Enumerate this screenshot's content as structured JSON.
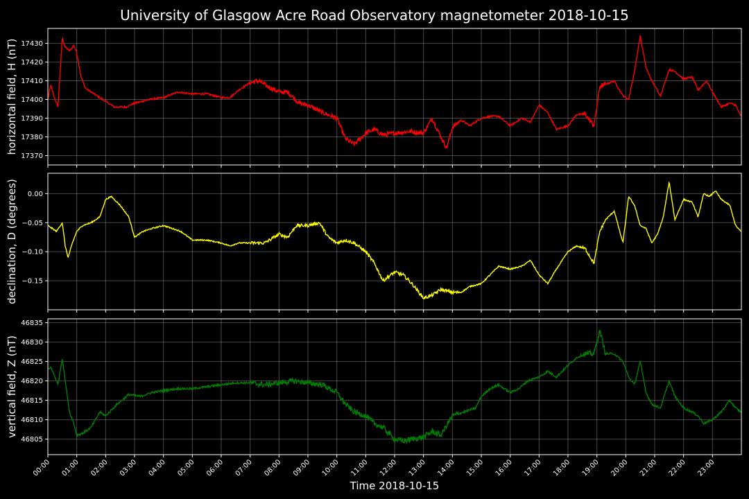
{
  "chart_data": {
    "type": "line",
    "title": "University of Glasgow Acre Road Observatory magnetometer 2018-10-15",
    "xlabel": "Time 2018-10-15",
    "xlim": [
      0,
      24
    ],
    "x_ticks": [
      "00:00",
      "01:00",
      "02:00",
      "03:00",
      "04:00",
      "05:00",
      "06:00",
      "07:00",
      "08:00",
      "09:00",
      "10:00",
      "11:00",
      "12:00",
      "13:00",
      "14:00",
      "15:00",
      "16:00",
      "17:00",
      "18:00",
      "19:00",
      "20:00",
      "21:00",
      "22:00",
      "23:00"
    ],
    "grid": true,
    "panels": [
      {
        "ylabel": "horizontal field, H (nT)",
        "color": "#ff0000",
        "ylim": [
          17365,
          17438
        ],
        "y_ticks": [
          17370,
          17380,
          17390,
          17400,
          17410,
          17420,
          17430
        ],
        "y_tick_labels": [
          "17370",
          "17380",
          "17390",
          "17400",
          "17410",
          "17420",
          "17430"
        ],
        "x_hours": [
          0,
          0.1,
          0.2,
          0.35,
          0.5,
          0.6,
          0.75,
          0.9,
          1.0,
          1.15,
          1.3,
          1.5,
          1.7,
          2.0,
          2.3,
          2.7,
          3.0,
          3.5,
          4.0,
          4.5,
          5.0,
          5.5,
          6.0,
          6.3,
          6.6,
          7.0,
          7.3,
          7.6,
          8.0,
          8.3,
          8.7,
          9.0,
          9.5,
          10.0,
          10.3,
          10.6,
          11.0,
          11.3,
          11.6,
          12.0,
          12.5,
          13.0,
          13.3,
          13.6,
          13.8,
          14.0,
          14.3,
          14.6,
          15.0,
          15.3,
          15.6,
          16.0,
          16.4,
          16.7,
          17.0,
          17.3,
          17.6,
          18.0,
          18.3,
          18.6,
          18.9,
          19.1,
          19.3,
          19.6,
          19.9,
          20.1,
          20.3,
          20.5,
          20.7,
          20.9,
          21.2,
          21.5,
          21.7,
          22.0,
          22.3,
          22.5,
          22.8,
          23.0,
          23.3,
          23.6,
          23.8,
          23.98
        ],
        "values": [
          17400,
          17408,
          17402,
          17396,
          17433,
          17428,
          17426,
          17429,
          17425,
          17412,
          17406,
          17404,
          17402,
          17399,
          17396,
          17396,
          17398,
          17400,
          17401,
          17404,
          17403,
          17403,
          17401,
          17401,
          17405,
          17409,
          17410,
          17407,
          17404,
          17404,
          17398,
          17397,
          17393,
          17390,
          17379,
          17376,
          17382,
          17384,
          17381,
          17382,
          17383,
          17382,
          17390,
          17380,
          17374,
          17385,
          17389,
          17386,
          17390,
          17391,
          17391,
          17386,
          17390,
          17388,
          17397,
          17393,
          17384,
          17386,
          17392,
          17392,
          17386,
          17407,
          17408,
          17410,
          17402,
          17400,
          17415,
          17434,
          17417,
          17410,
          17402,
          17416,
          17415,
          17411,
          17412,
          17405,
          17410,
          17404,
          17396,
          17398,
          17397,
          17391
        ],
        "noise": 1.6
      },
      {
        "ylabel": "declination, D (degrees)",
        "color": "#ffff00",
        "ylim": [
          -0.2,
          0.035
        ],
        "y_ticks": [
          -0.15,
          -0.1,
          -0.05,
          0.0
        ],
        "y_tick_labels": [
          "−0.15",
          "−0.10",
          "−0.05",
          "0.00"
        ],
        "x_hours": [
          0,
          0.3,
          0.5,
          0.6,
          0.7,
          0.85,
          1.0,
          1.2,
          1.5,
          1.8,
          2.0,
          2.2,
          2.5,
          2.8,
          3.0,
          3.3,
          3.6,
          4.0,
          4.3,
          4.6,
          5.0,
          5.5,
          6.0,
          6.3,
          6.6,
          7.0,
          7.5,
          8.0,
          8.3,
          8.6,
          9.0,
          9.4,
          9.7,
          10.0,
          10.3,
          10.6,
          11.0,
          11.3,
          11.6,
          12.0,
          12.3,
          12.6,
          13.0,
          13.3,
          13.6,
          14.0,
          14.3,
          14.6,
          15.0,
          15.3,
          15.6,
          16.0,
          16.4,
          16.7,
          17.0,
          17.3,
          17.6,
          18.0,
          18.3,
          18.6,
          18.9,
          19.1,
          19.3,
          19.6,
          19.9,
          20.1,
          20.3,
          20.5,
          20.7,
          20.9,
          21.1,
          21.3,
          21.5,
          21.7,
          22.0,
          22.3,
          22.5,
          22.7,
          22.9,
          23.1,
          23.3,
          23.6,
          23.8,
          23.98
        ],
        "values": [
          -0.055,
          -0.065,
          -0.05,
          -0.09,
          -0.11,
          -0.085,
          -0.065,
          -0.055,
          -0.05,
          -0.04,
          -0.01,
          -0.005,
          -0.02,
          -0.04,
          -0.075,
          -0.065,
          -0.06,
          -0.055,
          -0.06,
          -0.065,
          -0.08,
          -0.08,
          -0.085,
          -0.09,
          -0.085,
          -0.085,
          -0.085,
          -0.07,
          -0.075,
          -0.055,
          -0.055,
          -0.05,
          -0.075,
          -0.085,
          -0.08,
          -0.085,
          -0.1,
          -0.12,
          -0.15,
          -0.135,
          -0.14,
          -0.155,
          -0.18,
          -0.175,
          -0.165,
          -0.17,
          -0.17,
          -0.16,
          -0.155,
          -0.14,
          -0.125,
          -0.13,
          -0.125,
          -0.115,
          -0.14,
          -0.155,
          -0.13,
          -0.1,
          -0.09,
          -0.095,
          -0.12,
          -0.065,
          -0.045,
          -0.03,
          -0.085,
          -0.005,
          -0.02,
          -0.055,
          -0.06,
          -0.085,
          -0.07,
          -0.04,
          0.02,
          -0.045,
          -0.01,
          -0.015,
          -0.04,
          0.0,
          -0.005,
          0.005,
          -0.01,
          -0.02,
          -0.055,
          -0.065
        ],
        "noise": 0.0035
      },
      {
        "ylabel": "vertical field, Z (nT)",
        "color": "#008000",
        "ylim": [
          46801,
          46836
        ],
        "y_ticks": [
          46805,
          46810,
          46815,
          46820,
          46825,
          46830,
          46835
        ],
        "y_tick_labels": [
          "46805",
          "46810",
          "46815",
          "46820",
          "46825",
          "46830",
          "46835"
        ],
        "x_hours": [
          0,
          0.1,
          0.25,
          0.35,
          0.5,
          0.6,
          0.75,
          0.9,
          1.0,
          1.2,
          1.5,
          1.8,
          2.0,
          2.4,
          2.8,
          3.2,
          3.6,
          4.0,
          4.5,
          5.0,
          5.5,
          6.0,
          6.5,
          7.0,
          7.5,
          8.0,
          8.5,
          9.0,
          9.5,
          10.0,
          10.3,
          10.6,
          11.0,
          11.3,
          11.6,
          12.0,
          12.3,
          12.6,
          13.0,
          13.3,
          13.6,
          14.0,
          14.4,
          14.8,
          15.0,
          15.3,
          15.6,
          16.0,
          16.3,
          16.6,
          17.0,
          17.3,
          17.6,
          18.0,
          18.3,
          18.6,
          18.9,
          19.1,
          19.3,
          19.6,
          19.9,
          20.1,
          20.3,
          20.5,
          20.7,
          20.9,
          21.2,
          21.5,
          21.7,
          22.0,
          22.3,
          22.5,
          22.7,
          23.0,
          23.3,
          23.6,
          23.8,
          23.98
        ],
        "values": [
          46823,
          46823.5,
          46821,
          46819,
          46826,
          46820,
          46812,
          46809,
          46806,
          46806.5,
          46808,
          46812,
          46811,
          46814,
          46816.5,
          46816,
          46817,
          46817.5,
          46818,
          46818,
          46818.5,
          46819,
          46819.5,
          46819.5,
          46819,
          46819.5,
          46820,
          46819.5,
          46819,
          46817,
          46814,
          46812,
          46811,
          46809,
          46808,
          46805,
          46804.5,
          46805,
          46805.5,
          46807,
          46806,
          46811,
          46812,
          46813,
          46816,
          46818,
          46819,
          46817,
          46818,
          46820,
          46821,
          46822.5,
          46821,
          46824,
          46826,
          46827,
          46827,
          46833,
          46827,
          46827,
          46825,
          46821,
          46819,
          46825,
          46817,
          46814,
          46813,
          46820,
          46816,
          46813,
          46812,
          46811,
          46809,
          46810,
          46812,
          46815,
          46813,
          46812
        ],
        "noise": 0.9
      }
    ]
  }
}
